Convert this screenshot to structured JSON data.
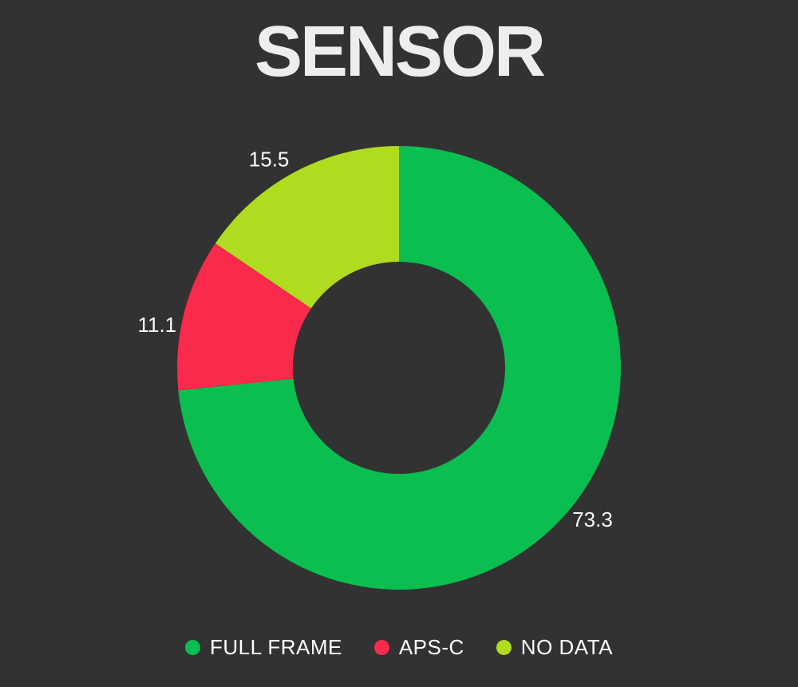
{
  "title": "SENSOR",
  "background_color": "#323232",
  "title_color": "#ededed",
  "label_color": "#fafafa",
  "chart_data": {
    "type": "pie",
    "subtype": "donut",
    "title": "SENSOR",
    "categories": [
      "FULL FRAME",
      "APS-C",
      "NO DATA"
    ],
    "values": [
      73.3,
      11.1,
      15.5
    ],
    "value_labels": [
      "73.3",
      "11.1",
      "15.5"
    ],
    "colors": [
      "#0abe50",
      "#f92a4c",
      "#b0dc1f"
    ],
    "start_angle_deg": 0,
    "direction": "clockwise",
    "inner_radius_ratio": 0.48,
    "labels_position": "outside",
    "legend_position": "bottom"
  }
}
